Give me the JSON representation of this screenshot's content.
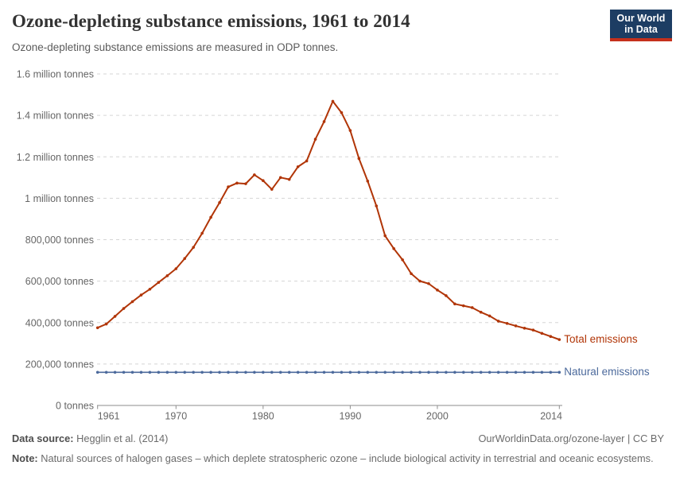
{
  "header": {
    "title": "Ozone-depleting substance emissions, 1961 to 2014",
    "subtitle": "Ozone-depleting substance emissions are measured in ODP tonnes.",
    "logo_line1": "Our World",
    "logo_line2": "in Data"
  },
  "colors": {
    "total_line": "#b13507",
    "natural_line": "#4c6a9c",
    "grid": "#d5d5d5",
    "axis": "#8e8e8e",
    "tick_text": "#666666",
    "logo_bg": "#1d3d63",
    "logo_accent": "#c5301c"
  },
  "chart_data": {
    "type": "line",
    "title": "Ozone-depleting substance emissions, 1961 to 2014",
    "xlabel": "",
    "ylabel": "ODP tonnes",
    "ylim": [
      0,
      1600000
    ],
    "grid": "horizontal-dashed",
    "legend_position": "right-of-line-end",
    "x": [
      1961,
      1962,
      1963,
      1964,
      1965,
      1966,
      1967,
      1968,
      1969,
      1970,
      1971,
      1972,
      1973,
      1974,
      1975,
      1976,
      1977,
      1978,
      1979,
      1980,
      1981,
      1982,
      1983,
      1984,
      1985,
      1986,
      1987,
      1988,
      1989,
      1990,
      1991,
      1992,
      1993,
      1994,
      1995,
      1996,
      1997,
      1998,
      1999,
      2000,
      2001,
      2002,
      2003,
      2004,
      2005,
      2006,
      2007,
      2008,
      2009,
      2010,
      2011,
      2012,
      2013,
      2014
    ],
    "series": [
      {
        "name": "Total emissions",
        "color": "#b13507",
        "values": [
          375000,
          393000,
          430000,
          468000,
          501000,
          533000,
          561000,
          594000,
          626000,
          660000,
          709000,
          763000,
          831000,
          908000,
          979000,
          1055000,
          1073000,
          1070000,
          1113000,
          1085000,
          1043000,
          1100000,
          1091000,
          1152000,
          1180000,
          1285000,
          1370000,
          1468000,
          1413000,
          1327000,
          1192000,
          1083000,
          963000,
          819000,
          757000,
          703000,
          636000,
          600000,
          588000,
          557000,
          530000,
          490000,
          481000,
          472000,
          450000,
          432000,
          407000,
          396000,
          384000,
          373000,
          364000,
          348000,
          333000,
          318000
        ]
      },
      {
        "name": "Natural emissions",
        "color": "#4c6a9c",
        "values": [
          160000,
          160000,
          160000,
          160000,
          160000,
          160000,
          160000,
          160000,
          160000,
          160000,
          160000,
          160000,
          160000,
          160000,
          160000,
          160000,
          160000,
          160000,
          160000,
          160000,
          160000,
          160000,
          160000,
          160000,
          160000,
          160000,
          160000,
          160000,
          160000,
          160000,
          160000,
          160000,
          160000,
          160000,
          160000,
          160000,
          160000,
          160000,
          160000,
          160000,
          160000,
          160000,
          160000,
          160000,
          160000,
          160000,
          160000,
          160000,
          160000,
          160000,
          160000,
          160000,
          160000,
          160000
        ]
      }
    ],
    "yticks": [
      {
        "value": 0,
        "label": "0 tonnes"
      },
      {
        "value": 200000,
        "label": "200,000 tonnes"
      },
      {
        "value": 400000,
        "label": "400,000 tonnes"
      },
      {
        "value": 600000,
        "label": "600,000 tonnes"
      },
      {
        "value": 800000,
        "label": "800,000 tonnes"
      },
      {
        "value": 1000000,
        "label": "1 million tonnes"
      },
      {
        "value": 1200000,
        "label": "1.2 million tonnes"
      },
      {
        "value": 1400000,
        "label": "1.4 million tonnes"
      },
      {
        "value": 1600000,
        "label": "1.6 million tonnes"
      }
    ],
    "xticks": [
      1961,
      1970,
      1980,
      1990,
      2000,
      2014
    ]
  },
  "footer": {
    "data_source_label": "Data source:",
    "data_source_value": "Hegglin et al. (2014)",
    "link_text": "OurWorldinData.org/ozone-layer | CC BY",
    "note_label": "Note:",
    "note_text": "Natural sources of halogen gases – which deplete stratospheric ozone – include biological activity in terrestrial and oceanic ecosystems."
  }
}
